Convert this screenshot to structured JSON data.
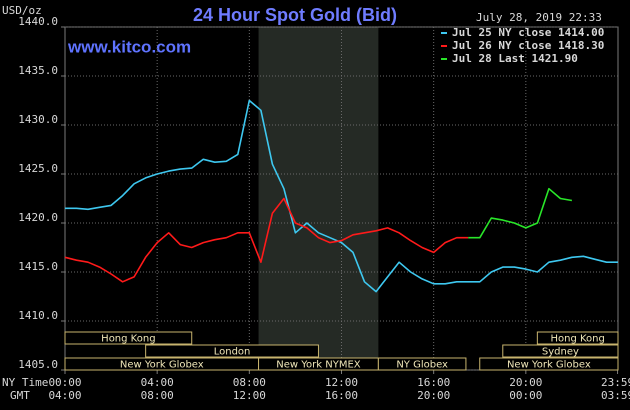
{
  "chart_data": {
    "type": "line",
    "title": "24 Hour Spot Gold (Bid)",
    "y_unit": "USD/oz",
    "timestamp": "July 28, 2019 22:33",
    "source": "www.kitco.com",
    "x_axis_labels": [
      "NY Time",
      "GMT"
    ],
    "x": [
      0,
      0.5,
      1,
      1.5,
      2,
      2.5,
      3,
      3.5,
      4,
      4.5,
      5,
      5.5,
      6,
      6.5,
      7,
      7.5,
      8,
      8.5,
      9,
      9.5,
      10,
      10.5,
      11,
      11.5,
      12,
      12.5,
      13,
      13.5,
      14,
      14.5,
      15,
      15.5,
      16,
      16.5,
      17,
      17.5,
      18,
      18.5,
      19,
      19.5,
      20,
      20.5,
      21,
      21.5,
      22,
      22.5,
      23,
      23.5,
      24
    ],
    "xlim": [
      0,
      24
    ],
    "xticks": [
      {
        "value": 0,
        "label": "00:00"
      },
      {
        "value": 4,
        "label": "04:00"
      },
      {
        "value": 8,
        "label": "08:00"
      },
      {
        "value": 12,
        "label": "12:00"
      },
      {
        "value": 16,
        "label": "16:00"
      },
      {
        "value": 20,
        "label": "20:00"
      },
      {
        "value": 23.98,
        "label": "23:59"
      }
    ],
    "gmt_labels": [
      "04:00",
      "08:00",
      "12:00",
      "16:00",
      "20:00",
      "00:00",
      "03:59"
    ],
    "ylim": [
      1405,
      1440
    ],
    "yticks": [
      {
        "value": 1405,
        "label": "1405.0"
      },
      {
        "value": 1410,
        "label": "1410.0"
      },
      {
        "value": 1415,
        "label": "1415.0"
      },
      {
        "value": 1420,
        "label": "1420.0"
      },
      {
        "value": 1425,
        "label": "1425.0"
      },
      {
        "value": 1430,
        "label": "1430.0"
      },
      {
        "value": 1435,
        "label": "1435.0"
      },
      {
        "value": 1440,
        "label": "1440.0"
      }
    ],
    "grid": true,
    "series": [
      {
        "name": "Jul 25 NY close 1414.00",
        "color": "#3ec8f0",
        "values": [
          1421.5,
          1421.5,
          1421.4,
          1421.6,
          1421.8,
          1422.8,
          1424.0,
          1424.6,
          1425.0,
          1425.3,
          1425.5,
          1425.6,
          1426.5,
          1426.2,
          1426.3,
          1427.0,
          1432.5,
          1431.5,
          1426.0,
          1423.5,
          1419.0,
          1420.0,
          1419.0,
          1418.5,
          1418.0,
          1417.0,
          1414.0,
          1413.0,
          1414.5,
          1416.0,
          1415.0,
          1414.3,
          1413.8,
          1413.8,
          1414.0,
          1414.0,
          1414.0,
          1415.0,
          1415.5,
          1415.5,
          1415.3,
          1415.0,
          1416.0,
          1416.2,
          1416.5,
          1416.6,
          1416.3,
          1416.0,
          1416.0
        ]
      },
      {
        "name": "Jul 26 NY close 1418.30",
        "color": "#ff1a1a",
        "values": [
          1416.5,
          1416.2,
          1416.0,
          1415.5,
          1414.8,
          1414.0,
          1414.5,
          1416.5,
          1418.0,
          1419.0,
          1417.8,
          1417.5,
          1418.0,
          1418.3,
          1418.5,
          1419.0,
          1419.0,
          1416.0,
          1421.0,
          1422.5,
          1420.0,
          1419.5,
          1418.5,
          1418.0,
          1418.2,
          1418.8,
          1419.0,
          1419.2,
          1419.5,
          1419.0,
          1418.2,
          1417.5,
          1417.0,
          1418.0,
          1418.5,
          1418.5,
          null,
          null,
          null,
          null,
          null,
          null,
          null,
          null,
          null,
          null,
          null,
          null,
          null
        ]
      },
      {
        "name": "Jul 28 Last 1421.90",
        "color": "#29e629",
        "values": [
          null,
          null,
          null,
          null,
          null,
          null,
          null,
          null,
          null,
          null,
          null,
          null,
          null,
          null,
          null,
          null,
          null,
          null,
          null,
          null,
          null,
          null,
          null,
          null,
          null,
          null,
          null,
          null,
          null,
          null,
          null,
          null,
          null,
          null,
          null,
          1418.5,
          1418.5,
          1420.5,
          1420.3,
          1420.0,
          1419.5,
          1420.0,
          1423.5,
          1422.5,
          1422.3,
          null,
          null,
          null,
          null
        ]
      }
    ],
    "sessions": [
      {
        "label": "Hong Kong",
        "start": 0,
        "end": 5.5,
        "row": 1
      },
      {
        "label": "Hong Kong",
        "start": 20.5,
        "end": 24,
        "row": 1
      },
      {
        "label": "London",
        "start": 3.5,
        "end": 11,
        "row": 2
      },
      {
        "label": "Sydney",
        "start": 19,
        "end": 24,
        "row": 2
      },
      {
        "label": "New York Globex",
        "start": 0,
        "end": 8.4,
        "row": 3
      },
      {
        "label": "New York NYMEX",
        "start": 8.4,
        "end": 13.6,
        "row": 3,
        "highlight": true
      },
      {
        "label": "NY Globex",
        "start": 13.6,
        "end": 17.4,
        "row": 3
      },
      {
        "label": "New York Globex",
        "start": 18,
        "end": 24,
        "row": 3
      }
    ]
  }
}
